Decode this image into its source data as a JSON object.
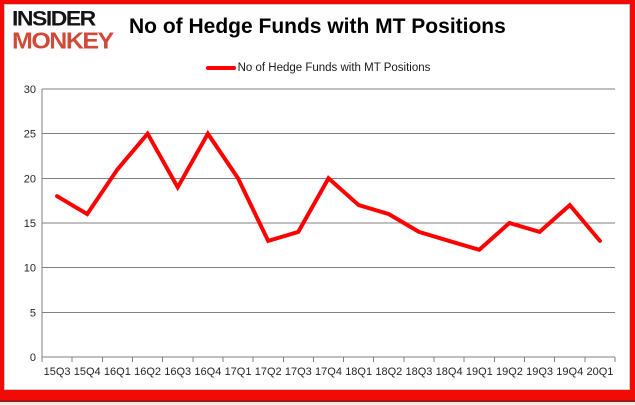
{
  "logo": {
    "line1": "INSIDER",
    "line2": "MONKEY"
  },
  "header": {
    "title": "No of Hedge Funds with MT Positions"
  },
  "legend": {
    "label": "No of Hedge Funds with MT Positions"
  },
  "colors": {
    "line": "#ff0000",
    "grid": "#808080",
    "axis": "#808080",
    "tick_label": "#262626",
    "frame_red": "#f10b04",
    "logo_black": "#141414",
    "logo_red": "#cf4a38"
  },
  "chart_data": {
    "type": "line",
    "title": "No of Hedge Funds with MT Positions",
    "categories": [
      "15Q3",
      "15Q4",
      "16Q1",
      "16Q2",
      "16Q3",
      "16Q4",
      "17Q1",
      "17Q2",
      "17Q3",
      "17Q4",
      "18Q1",
      "18Q2",
      "18Q3",
      "18Q4",
      "19Q1",
      "19Q2",
      "19Q3",
      "19Q4",
      "20Q1"
    ],
    "series": [
      {
        "name": "No of Hedge Funds with MT Positions",
        "values": [
          18,
          16,
          21,
          25,
          19,
          25,
          20,
          13,
          14,
          20,
          17,
          16,
          14,
          13,
          12,
          15,
          14,
          17,
          13
        ]
      }
    ],
    "xlabel": "",
    "ylabel": "",
    "ylim": [
      0,
      30
    ],
    "yticks": [
      0,
      5,
      10,
      15,
      20,
      25,
      30
    ],
    "grid": true,
    "legend_position": "top-center",
    "line_color": "#ff0000",
    "grid_color": "#808080"
  }
}
